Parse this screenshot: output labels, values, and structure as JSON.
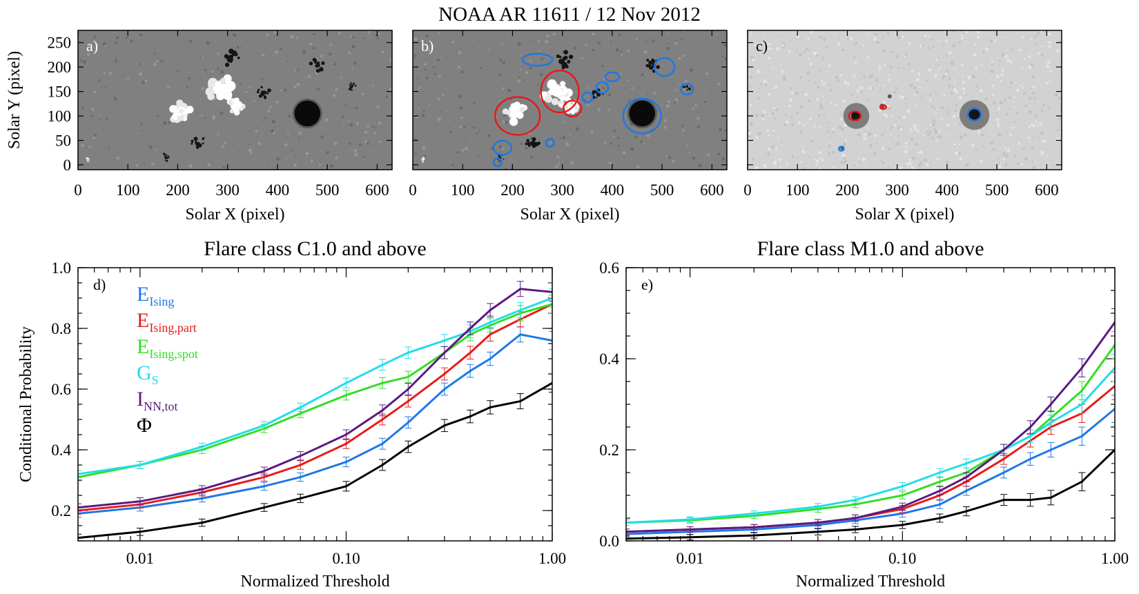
{
  "figure_title": "NOAA AR 11611 / 12 Nov 2012",
  "colors": {
    "E_Ising": "#1e78e6",
    "E_Ising_part": "#e61a1a",
    "E_Ising_spot": "#33dd22",
    "G_S": "#22dde6",
    "I_NN_tot": "#5a1a80",
    "Phi": "#000000"
  },
  "legend": [
    {
      "main": "E",
      "sub": "Ising",
      "color_key": "E_Ising"
    },
    {
      "main": "E",
      "sub": "Ising,part",
      "color_key": "E_Ising_part"
    },
    {
      "main": "E",
      "sub": "Ising,spot",
      "color_key": "E_Ising_spot"
    },
    {
      "main": "G",
      "sub": "S",
      "color_key": "G_S"
    },
    {
      "main": "I",
      "sub": "NN,tot",
      "color_key": "I_NN_tot"
    },
    {
      "main": "Φ",
      "sub": "",
      "color_key": "Phi"
    }
  ],
  "chart_data": [
    {
      "panel": "a)",
      "type": "image",
      "xlabel": "Solar X (pixel)",
      "ylabel": "Solar Y (pixel)",
      "xlim": [
        0,
        630
      ],
      "ylim": [
        -10,
        275
      ],
      "xticks": [
        0,
        100,
        200,
        300,
        400,
        500,
        600
      ],
      "yticks": [
        0,
        50,
        100,
        150,
        200,
        250
      ],
      "yticklabels": [
        "0",
        "50",
        "100",
        "150",
        "200",
        "250"
      ],
      "content": "magnetogram",
      "features": [
        {
          "kind": "spot",
          "x": 460,
          "y": 105,
          "r": 26,
          "shade": "dark"
        },
        {
          "kind": "plage",
          "x": 205,
          "y": 108,
          "r": 22,
          "shade": "bright"
        },
        {
          "kind": "plage",
          "x": 290,
          "y": 150,
          "r": 28,
          "shade": "bright"
        },
        {
          "kind": "plage",
          "x": 315,
          "y": 120,
          "r": 16,
          "shade": "bright"
        },
        {
          "kind": "patch",
          "x": 305,
          "y": 215,
          "r": 18,
          "shade": "dark"
        },
        {
          "kind": "patch",
          "x": 370,
          "y": 150,
          "r": 14,
          "shade": "dark"
        },
        {
          "kind": "patch",
          "x": 480,
          "y": 205,
          "r": 14,
          "shade": "dark"
        },
        {
          "kind": "patch",
          "x": 240,
          "y": 45,
          "r": 14,
          "shade": "dark"
        },
        {
          "kind": "patch",
          "x": 175,
          "y": 15,
          "r": 8,
          "shade": "dark"
        },
        {
          "kind": "patch",
          "x": 550,
          "y": 160,
          "r": 8,
          "shade": "dark"
        },
        {
          "kind": "patch",
          "x": 20,
          "y": 10,
          "r": 5,
          "shade": "bright"
        }
      ]
    },
    {
      "panel": "b)",
      "type": "image",
      "xlabel": "Solar X (pixel)",
      "ylabel": "",
      "xlim": [
        0,
        630
      ],
      "ylim": [
        -10,
        275
      ],
      "xticks": [
        0,
        100,
        200,
        300,
        400,
        500,
        600
      ],
      "yticks": [
        0,
        50,
        100,
        150,
        200,
        250
      ],
      "yticklabels": [],
      "content": "magnetogram with contours",
      "features": [
        {
          "kind": "spot",
          "x": 460,
          "y": 105,
          "r": 26,
          "shade": "dark"
        },
        {
          "kind": "plage",
          "x": 205,
          "y": 108,
          "r": 22,
          "shade": "bright"
        },
        {
          "kind": "plage",
          "x": 290,
          "y": 150,
          "r": 28,
          "shade": "bright"
        },
        {
          "kind": "plage",
          "x": 315,
          "y": 120,
          "r": 16,
          "shade": "bright"
        },
        {
          "kind": "patch",
          "x": 305,
          "y": 215,
          "r": 18,
          "shade": "dark"
        },
        {
          "kind": "patch",
          "x": 370,
          "y": 150,
          "r": 14,
          "shade": "dark"
        },
        {
          "kind": "patch",
          "x": 480,
          "y": 205,
          "r": 14,
          "shade": "dark"
        },
        {
          "kind": "patch",
          "x": 240,
          "y": 45,
          "r": 14,
          "shade": "dark"
        },
        {
          "kind": "patch",
          "x": 175,
          "y": 15,
          "r": 8,
          "shade": "dark"
        },
        {
          "kind": "patch",
          "x": 550,
          "y": 160,
          "r": 8,
          "shade": "dark"
        },
        {
          "kind": "patch",
          "x": 20,
          "y": 10,
          "r": 5,
          "shade": "bright"
        }
      ],
      "contours": [
        {
          "color_key": "E_Ising_part",
          "x": 210,
          "y": 100,
          "rx": 45,
          "ry": 38
        },
        {
          "color_key": "E_Ising_part",
          "x": 295,
          "y": 150,
          "rx": 38,
          "ry": 42
        },
        {
          "color_key": "E_Ising_part",
          "x": 320,
          "y": 115,
          "rx": 18,
          "ry": 16
        },
        {
          "color_key": "E_Ising",
          "x": 460,
          "y": 100,
          "rx": 38,
          "ry": 35
        },
        {
          "color_key": "E_Ising",
          "x": 250,
          "y": 215,
          "rx": 30,
          "ry": 12
        },
        {
          "color_key": "E_Ising",
          "x": 400,
          "y": 180,
          "rx": 14,
          "ry": 9
        },
        {
          "color_key": "E_Ising",
          "x": 380,
          "y": 158,
          "rx": 12,
          "ry": 11
        },
        {
          "color_key": "E_Ising",
          "x": 350,
          "y": 138,
          "rx": 10,
          "ry": 10
        },
        {
          "color_key": "E_Ising",
          "x": 505,
          "y": 200,
          "rx": 20,
          "ry": 18
        },
        {
          "color_key": "E_Ising",
          "x": 550,
          "y": 155,
          "rx": 12,
          "ry": 11
        },
        {
          "color_key": "E_Ising",
          "x": 180,
          "y": 35,
          "rx": 18,
          "ry": 14
        },
        {
          "color_key": "E_Ising",
          "x": 170,
          "y": 5,
          "rx": 8,
          "ry": 8
        },
        {
          "color_key": "E_Ising",
          "x": 275,
          "y": 45,
          "rx": 8,
          "ry": 8
        }
      ]
    },
    {
      "panel": "c)",
      "type": "image",
      "xlabel": "Solar X (pixel)",
      "ylabel": "",
      "xlim": [
        0,
        630
      ],
      "ylim": [
        -10,
        275
      ],
      "xticks": [
        0,
        100,
        200,
        300,
        400,
        500,
        600
      ],
      "yticks": [
        0,
        50,
        100,
        150,
        200,
        250
      ],
      "yticklabels": [],
      "content": "continuum intensitygram",
      "features": [
        {
          "kind": "penumbra",
          "x": 455,
          "y": 102,
          "r": 30
        },
        {
          "kind": "umbra",
          "x": 455,
          "y": 102,
          "r": 13
        },
        {
          "kind": "penumbra",
          "x": 218,
          "y": 100,
          "r": 26
        },
        {
          "kind": "umbra",
          "x": 218,
          "y": 100,
          "r": 10
        },
        {
          "kind": "speck",
          "x": 270,
          "y": 120,
          "r": 5
        },
        {
          "kind": "speck",
          "x": 285,
          "y": 140,
          "r": 4
        },
        {
          "kind": "speck",
          "x": 190,
          "y": 35,
          "r": 4
        }
      ],
      "contours": [
        {
          "color_key": "E_Ising_part",
          "x": 215,
          "y": 100,
          "rx": 12,
          "ry": 9
        },
        {
          "color_key": "E_Ising_part",
          "x": 272,
          "y": 118,
          "rx": 6,
          "ry": 4
        },
        {
          "color_key": "E_Ising",
          "x": 455,
          "y": 103,
          "rx": 13,
          "ry": 12
        },
        {
          "color_key": "E_Ising",
          "x": 188,
          "y": 33,
          "rx": 5,
          "ry": 4
        }
      ]
    },
    {
      "panel": "d)",
      "type": "line",
      "title": "Flare class C1.0 and above",
      "xlabel": "Normalized Threshold",
      "ylabel": "Conditional Probability",
      "xscale": "log",
      "xlim": [
        0.005,
        1.0
      ],
      "ylim": [
        0.1,
        1.0
      ],
      "xticks": [
        0.01,
        0.1,
        1.0
      ],
      "xticklabels": [
        "0.01",
        "0.10",
        "1.00"
      ],
      "yticks": [
        0.2,
        0.4,
        0.6,
        0.8,
        1.0
      ],
      "yticklabels": [
        "0.2",
        "0.4",
        "0.6",
        "0.8",
        "1.0"
      ],
      "x": [
        0.005,
        0.01,
        0.02,
        0.04,
        0.06,
        0.1,
        0.15,
        0.2,
        0.3,
        0.4,
        0.5,
        0.7,
        1.0
      ],
      "series": [
        {
          "name": "E_Ising",
          "values": [
            0.19,
            0.21,
            0.24,
            0.28,
            0.31,
            0.36,
            0.42,
            0.49,
            0.6,
            0.66,
            0.7,
            0.78,
            0.76
          ],
          "errors": [
            0.012,
            0.012,
            0.012,
            0.013,
            0.014,
            0.016,
            0.018,
            0.019,
            0.02,
            0.021,
            0.022,
            0.025,
            0.03
          ]
        },
        {
          "name": "E_Ising_part",
          "values": [
            0.2,
            0.22,
            0.26,
            0.31,
            0.35,
            0.42,
            0.5,
            0.56,
            0.65,
            0.72,
            0.78,
            0.83,
            0.88
          ],
          "errors": [
            0.012,
            0.012,
            0.012,
            0.013,
            0.014,
            0.016,
            0.018,
            0.019,
            0.02,
            0.021,
            0.022,
            0.025,
            0.03
          ]
        },
        {
          "name": "E_Ising_spot",
          "values": [
            0.31,
            0.35,
            0.4,
            0.47,
            0.52,
            0.58,
            0.62,
            0.64,
            0.72,
            0.78,
            0.81,
            0.85,
            0.88
          ],
          "errors": [
            0.012,
            0.012,
            0.012,
            0.013,
            0.014,
            0.016,
            0.018,
            0.019,
            0.02,
            0.021,
            0.022,
            0.025,
            0.03
          ]
        },
        {
          "name": "G_S",
          "values": [
            0.32,
            0.35,
            0.41,
            0.48,
            0.54,
            0.62,
            0.68,
            0.72,
            0.76,
            0.79,
            0.82,
            0.86,
            0.9
          ],
          "errors": [
            0.012,
            0.012,
            0.012,
            0.013,
            0.014,
            0.016,
            0.018,
            0.019,
            0.02,
            0.021,
            0.022,
            0.025,
            0.03
          ]
        },
        {
          "name": "I_NN_tot",
          "values": [
            0.21,
            0.23,
            0.27,
            0.33,
            0.38,
            0.45,
            0.53,
            0.6,
            0.72,
            0.8,
            0.86,
            0.93,
            0.92
          ],
          "errors": [
            0.012,
            0.012,
            0.012,
            0.013,
            0.014,
            0.016,
            0.018,
            0.019,
            0.02,
            0.021,
            0.022,
            0.025,
            0.03
          ]
        },
        {
          "name": "Phi",
          "values": [
            0.11,
            0.13,
            0.16,
            0.21,
            0.24,
            0.28,
            0.35,
            0.41,
            0.48,
            0.51,
            0.54,
            0.56,
            0.62
          ],
          "errors": [
            0.012,
            0.012,
            0.012,
            0.013,
            0.014,
            0.016,
            0.018,
            0.019,
            0.02,
            0.021,
            0.022,
            0.025,
            0.03
          ]
        }
      ]
    },
    {
      "panel": "e)",
      "type": "line",
      "title": "Flare class M1.0 and above",
      "xlabel": "Normalized Threshold",
      "ylabel": "",
      "xscale": "log",
      "xlim": [
        0.005,
        1.0
      ],
      "ylim": [
        0.0,
        0.6
      ],
      "xticks": [
        0.01,
        0.1,
        1.0
      ],
      "xticklabels": [
        "0.01",
        "0.10",
        "1.00"
      ],
      "yticks": [
        0.0,
        0.2,
        0.4,
        0.6
      ],
      "yticklabels": [
        "0.0",
        "0.2",
        "0.4",
        "0.6"
      ],
      "x": [
        0.005,
        0.01,
        0.02,
        0.04,
        0.06,
        0.1,
        0.15,
        0.2,
        0.3,
        0.4,
        0.5,
        0.7,
        1.0
      ],
      "series": [
        {
          "name": "E_Ising",
          "values": [
            0.015,
            0.02,
            0.025,
            0.035,
            0.045,
            0.06,
            0.08,
            0.11,
            0.15,
            0.18,
            0.2,
            0.23,
            0.29
          ],
          "errors": [
            0.006,
            0.006,
            0.006,
            0.007,
            0.007,
            0.008,
            0.009,
            0.01,
            0.012,
            0.014,
            0.016,
            0.02,
            0.03
          ]
        },
        {
          "name": "E_Ising_part",
          "values": [
            0.02,
            0.025,
            0.03,
            0.04,
            0.05,
            0.07,
            0.1,
            0.13,
            0.18,
            0.22,
            0.25,
            0.28,
            0.34
          ],
          "errors": [
            0.006,
            0.006,
            0.006,
            0.007,
            0.007,
            0.008,
            0.009,
            0.01,
            0.012,
            0.014,
            0.016,
            0.02,
            0.03
          ]
        },
        {
          "name": "E_Ising_spot",
          "values": [
            0.04,
            0.045,
            0.055,
            0.07,
            0.08,
            0.1,
            0.13,
            0.15,
            0.2,
            0.23,
            0.27,
            0.33,
            0.43
          ],
          "errors": [
            0.006,
            0.006,
            0.006,
            0.007,
            0.007,
            0.008,
            0.009,
            0.01,
            0.012,
            0.014,
            0.016,
            0.02,
            0.03
          ]
        },
        {
          "name": "G_S",
          "values": [
            0.04,
            0.047,
            0.06,
            0.075,
            0.09,
            0.12,
            0.15,
            0.17,
            0.2,
            0.23,
            0.26,
            0.3,
            0.38
          ],
          "errors": [
            0.006,
            0.006,
            0.006,
            0.007,
            0.007,
            0.008,
            0.009,
            0.01,
            0.012,
            0.014,
            0.016,
            0.02,
            0.03
          ]
        },
        {
          "name": "I_NN_tot",
          "values": [
            0.02,
            0.025,
            0.03,
            0.04,
            0.05,
            0.075,
            0.11,
            0.14,
            0.2,
            0.25,
            0.3,
            0.38,
            0.48
          ],
          "errors": [
            0.006,
            0.006,
            0.006,
            0.007,
            0.007,
            0.008,
            0.009,
            0.01,
            0.012,
            0.014,
            0.016,
            0.02,
            0.03
          ]
        },
        {
          "name": "Phi",
          "values": [
            0.005,
            0.008,
            0.012,
            0.02,
            0.025,
            0.035,
            0.05,
            0.065,
            0.09,
            0.09,
            0.095,
            0.13,
            0.2
          ],
          "errors": [
            0.006,
            0.006,
            0.006,
            0.007,
            0.007,
            0.008,
            0.009,
            0.01,
            0.012,
            0.014,
            0.016,
            0.02,
            0.03
          ]
        }
      ]
    }
  ]
}
